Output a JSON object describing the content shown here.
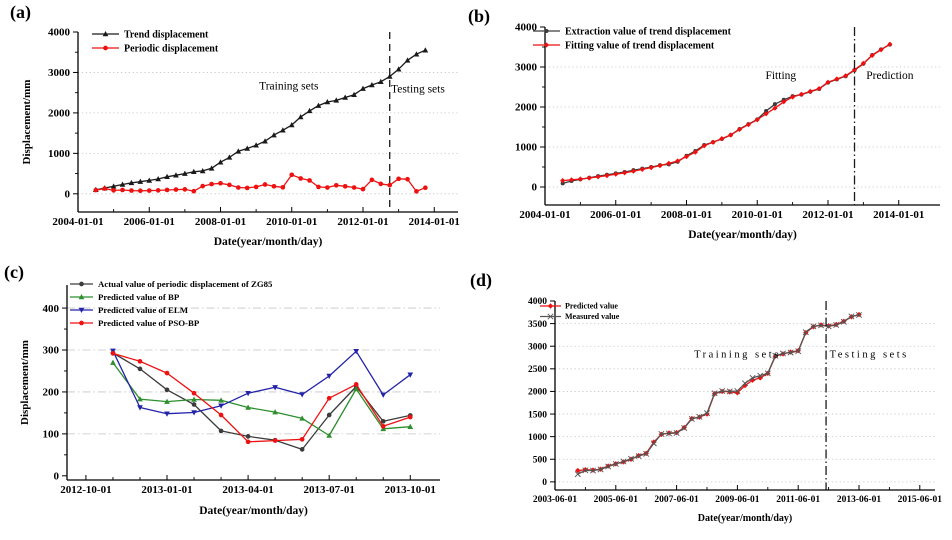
{
  "chart_data": [
    {
      "type": "line",
      "panel_label": "(a)",
      "xlabel": "Date(year/month/day)",
      "ylabel": "Displacement/mm",
      "x_unit": "months since 2004-01-01",
      "x_range": [
        0,
        128
      ],
      "x_tick_pos": [
        0,
        24,
        48,
        72,
        96,
        120
      ],
      "x_tick_labels": [
        "2004-01-01",
        "2006-01-01",
        "2008-01-01",
        "2010-01-01",
        "2012-01-01",
        "2014-01-01"
      ],
      "x_minor_divisions": 2,
      "ylim": [
        -450,
        4000
      ],
      "y_ticks": [
        0,
        1000,
        2000,
        3000,
        4000
      ],
      "y_minor_divisions": 2,
      "grid_values": [
        0,
        1000,
        2000,
        3000
      ],
      "grid_style": "dotted",
      "legend_position": "top-left",
      "series": [
        {
          "name": "Trend displacement",
          "color": "#1a1a1a",
          "marker": "triangle-up",
          "x_start": 6,
          "x_step": 3,
          "values": [
            100,
            140,
            185,
            230,
            270,
            300,
            330,
            365,
            420,
            460,
            500,
            545,
            565,
            630,
            780,
            900,
            1050,
            1120,
            1200,
            1300,
            1450,
            1570,
            1700,
            1900,
            2050,
            2180,
            2270,
            2310,
            2380,
            2450,
            2600,
            2690,
            2770,
            2900,
            3080,
            3300,
            3450,
            3550
          ]
        },
        {
          "name": "Periodic displacement",
          "color": "#ee1111",
          "marker": "circle",
          "x_start": 6,
          "x_step": 3,
          "values": [
            90,
            130,
            85,
            95,
            80,
            75,
            80,
            85,
            95,
            105,
            110,
            65,
            190,
            240,
            260,
            220,
            155,
            145,
            170,
            230,
            185,
            160,
            470,
            380,
            330,
            170,
            155,
            210,
            185,
            155,
            115,
            345,
            245,
            215,
            370,
            360,
            60,
            150
          ]
        }
      ],
      "divider": {
        "pos": 105,
        "style": "dashed"
      },
      "annotations": [
        {
          "text": "Training sets",
          "x": 71,
          "y": 2580
        },
        {
          "text": "Testing sets",
          "x": 114.5,
          "y": 2500
        }
      ]
    },
    {
      "type": "line",
      "panel_label": "(b)",
      "xlabel": "Date(year/month/day)",
      "ylabel": "",
      "x_unit": "months since 2004-01-01",
      "x_range": [
        0,
        134
      ],
      "x_tick_pos": [
        0,
        24,
        48,
        72,
        96,
        120
      ],
      "x_tick_labels": [
        "2004-01-01",
        "2006-01-01",
        "2008-01-01",
        "2010-01-01",
        "2012-01-01",
        "2014-01-01"
      ],
      "x_minor_divisions": 2,
      "ylim": [
        -450,
        4000
      ],
      "y_ticks": [
        0,
        1000,
        2000,
        3000,
        4000
      ],
      "y_minor_divisions": 2,
      "grid_values": [
        0,
        1000,
        2000,
        3000
      ],
      "grid_style": "dotted",
      "legend_position": "top-left",
      "series": [
        {
          "name": "Extraction value of trend displacement",
          "color": "#3c3c3c",
          "marker": "circle",
          "x_start": 6,
          "x_step": 3,
          "values": [
            90,
            150,
            190,
            230,
            270,
            305,
            340,
            375,
            420,
            460,
            500,
            545,
            565,
            630,
            780,
            900,
            1050,
            1120,
            1200,
            1300,
            1450,
            1570,
            1690,
            1900,
            2070,
            2180,
            2270,
            2310,
            2380,
            2450,
            2610,
            2690,
            2770,
            2920,
            3080,
            3300,
            3440,
            3560
          ]
        },
        {
          "name": "Fitting value of trend displacement",
          "color": "#ee1111",
          "marker": "diamond",
          "x_start": 6,
          "x_step": 3,
          "values": [
            160,
            180,
            200,
            225,
            255,
            285,
            320,
            355,
            395,
            440,
            485,
            535,
            590,
            650,
            760,
            870,
            1030,
            1120,
            1210,
            1300,
            1440,
            1560,
            1680,
            1830,
            1970,
            2130,
            2250,
            2320,
            2390,
            2460,
            2620,
            2700,
            2780,
            2930,
            3090,
            3290,
            3430,
            3570
          ]
        }
      ],
      "divider": {
        "pos": 105,
        "style": "dashdot"
      },
      "annotations": [
        {
          "text": "Fitting",
          "x": 80,
          "y": 2700
        },
        {
          "text": "Prediction",
          "x": 117,
          "y": 2700
        }
      ]
    },
    {
      "type": "line",
      "panel_label": "(c)",
      "xlabel": "Date(year/month/day)",
      "ylabel": "Displacement/mm",
      "x_unit": "months since 2012-10-01",
      "x_range": [
        -0.7,
        13.1
      ],
      "x_tick_pos": [
        0,
        3,
        6,
        9,
        12
      ],
      "x_tick_labels": [
        "2012-10-01",
        "2013-01-01",
        "2013-04-01",
        "2013-07-01",
        "2013-10-01"
      ],
      "x_minor_divisions": 3,
      "ylim": [
        -10,
        455
      ],
      "y_ticks": [
        0,
        100,
        200,
        300,
        400
      ],
      "y_minor_divisions": 2,
      "grid_values": [
        100,
        200,
        300,
        400
      ],
      "grid_style": "dashdot",
      "legend_position": "top-left",
      "series": [
        {
          "name": "Actual value of periodic displacement of ZG85",
          "color": "#3c3c3c",
          "marker": "circle",
          "x_start": 1,
          "x_step": 1,
          "values": [
            293,
            255,
            205,
            170,
            107,
            94,
            85,
            63,
            145,
            213,
            130,
            144
          ]
        },
        {
          "name": "Predicted value of BP",
          "color": "#2d8f2d",
          "marker": "triangle-up",
          "x_start": 1,
          "x_step": 1,
          "values": [
            270,
            183,
            177,
            182,
            180,
            163,
            152,
            137,
            96,
            207,
            112,
            117
          ]
        },
        {
          "name": "Predicted value of ELM",
          "color": "#2323aa",
          "marker": "triangle-down",
          "x_start": 1,
          "x_step": 1,
          "values": [
            298,
            163,
            148,
            151,
            167,
            197,
            211,
            194,
            238,
            297,
            193,
            241
          ]
        },
        {
          "name": "Predicted value of PSO-BP",
          "color": "#ee1111",
          "marker": "circle",
          "x_start": 1,
          "x_step": 1,
          "values": [
            292,
            273,
            245,
            197,
            145,
            81,
            84,
            87,
            185,
            218,
            118,
            140
          ]
        }
      ],
      "divider": null,
      "annotations": []
    },
    {
      "type": "line",
      "panel_label": "(d)",
      "xlabel": "Date(year/month/day)",
      "ylabel": "",
      "x_unit": "months since 2003-06-01",
      "x_range": [
        0,
        150
      ],
      "x_tick_pos": [
        0,
        24,
        48,
        72,
        96,
        120,
        144
      ],
      "x_tick_labels": [
        "2003-06-01",
        "2005-06-01",
        "2007-06-01",
        "2009-06-01",
        "2011-06-01",
        "2013-06-01",
        "2015-06-01"
      ],
      "x_minor_divisions": 2,
      "ylim": [
        -180,
        4000
      ],
      "y_ticks": [
        0,
        500,
        1000,
        1500,
        2000,
        2500,
        3000,
        3500,
        4000
      ],
      "y_minor_divisions": 1,
      "grid_values": [
        0,
        500,
        1000,
        1500,
        2000,
        2500,
        3000,
        3500
      ],
      "grid_style": "dotted",
      "legend_position": "top-left",
      "series": [
        {
          "name": "Predicted value",
          "color": "#ee1111",
          "marker": "diamond",
          "x_start": 9,
          "x_step": 3,
          "values": [
            250,
            270,
            260,
            280,
            350,
            400,
            440,
            500,
            580,
            630,
            880,
            1050,
            1080,
            1090,
            1200,
            1400,
            1430,
            1500,
            1950,
            2000,
            1990,
            1970,
            2130,
            2250,
            2300,
            2400,
            2780,
            2830,
            2870,
            2900,
            3300,
            3430,
            3470,
            3450,
            3480,
            3550,
            3650,
            3700
          ]
        },
        {
          "name": "Measured value",
          "color": "#555555",
          "marker": "x",
          "x_start": 9,
          "x_step": 3,
          "values": [
            170,
            255,
            250,
            275,
            340,
            395,
            450,
            510,
            570,
            620,
            850,
            1060,
            1070,
            1080,
            1190,
            1390,
            1440,
            1520,
            1960,
            2010,
            2000,
            2010,
            2180,
            2300,
            2350,
            2400,
            2790,
            2840,
            2860,
            2890,
            3310,
            3440,
            3460,
            3440,
            3470,
            3540,
            3660,
            3690
          ]
        }
      ],
      "divider": {
        "pos": 107,
        "style": "dashdot"
      },
      "annotations": [
        {
          "text": "Training sets",
          "x": 72,
          "y": 2750,
          "spaced": true
        },
        {
          "text": "Testing sets",
          "x": 124,
          "y": 2750,
          "spaced": true
        }
      ]
    }
  ]
}
